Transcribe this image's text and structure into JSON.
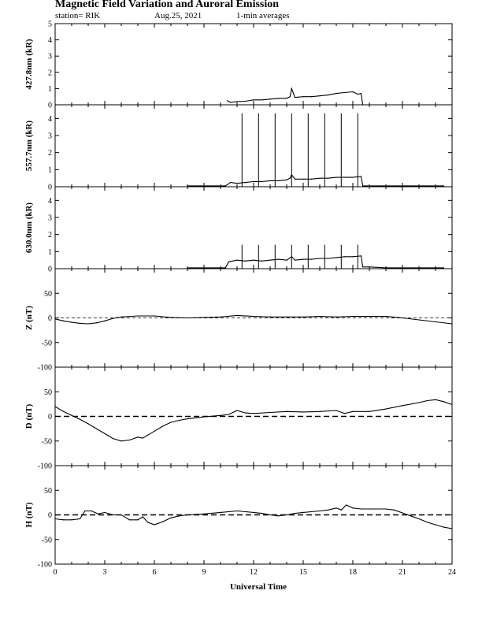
{
  "header": {
    "title": "Magnetic Field Variation and Auroral Emission",
    "station": "station= RIK",
    "date": "Aug.25, 2021",
    "averaging": "1-min averages"
  },
  "chart_data": [
    {
      "type": "line",
      "ylabel": "427.8nm (kR)",
      "xlim": [
        0,
        24
      ],
      "ylim": [
        0,
        5
      ],
      "yticks": [
        0,
        1,
        2,
        3,
        4,
        5
      ],
      "grid": false,
      "series": [
        {
          "x": [
            10.4,
            10.6,
            11.0,
            11.5,
            12.0,
            12.5,
            13.0,
            13.5,
            14.0,
            14.2,
            14.3,
            14.5,
            15.0,
            15.5,
            16.0,
            16.5,
            17.0,
            17.5,
            18.0,
            18.3,
            18.5,
            18.6
          ],
          "y": [
            0.25,
            0.15,
            0.2,
            0.22,
            0.3,
            0.3,
            0.35,
            0.4,
            0.4,
            0.5,
            1.0,
            0.45,
            0.5,
            0.5,
            0.55,
            0.6,
            0.7,
            0.75,
            0.8,
            0.65,
            0.7,
            0.0
          ]
        }
      ]
    },
    {
      "type": "line",
      "ylabel": "557.7nm (kR)",
      "xlim": [
        0,
        24
      ],
      "ylim": [
        0,
        4.8
      ],
      "yticks": [
        0,
        1,
        2,
        3,
        4
      ],
      "grid": false,
      "series": [
        {
          "x": [
            8.0,
            10.3,
            10.6,
            11.0,
            11.5,
            12.0,
            12.5,
            13.0,
            13.5,
            14.0,
            14.2,
            14.3,
            14.5,
            15.0,
            15.5,
            16.0,
            16.5,
            17.0,
            17.5,
            18.0,
            18.5,
            18.6,
            19.0,
            20.0,
            21.0,
            22.0,
            23.0,
            23.5
          ],
          "y": [
            0.05,
            0.05,
            0.25,
            0.2,
            0.25,
            0.3,
            0.3,
            0.35,
            0.35,
            0.4,
            0.5,
            0.7,
            0.45,
            0.45,
            0.45,
            0.5,
            0.5,
            0.55,
            0.55,
            0.55,
            0.6,
            0.05,
            0.05,
            0.05,
            0.05,
            0.05,
            0.05,
            0.05
          ]
        }
      ],
      "spikes": {
        "x": [
          11.3,
          12.3,
          13.3,
          14.3,
          15.3,
          16.3,
          17.3,
          18.3
        ],
        "y": 4.3
      }
    },
    {
      "type": "line",
      "ylabel": "630.0nm (kR)",
      "xlim": [
        0,
        24
      ],
      "ylim": [
        0,
        4.8
      ],
      "yticks": [
        0,
        1,
        2,
        3,
        4
      ],
      "grid": false,
      "series": [
        {
          "x": [
            8.0,
            10.3,
            10.5,
            11.0,
            11.5,
            12.0,
            12.5,
            13.0,
            13.5,
            14.0,
            14.3,
            14.5,
            15.0,
            15.5,
            16.0,
            16.5,
            17.0,
            17.5,
            18.0,
            18.5,
            18.6,
            19.0,
            20.0,
            21.0,
            22.0,
            23.0,
            23.5
          ],
          "y": [
            0.05,
            0.05,
            0.4,
            0.5,
            0.45,
            0.5,
            0.45,
            0.5,
            0.55,
            0.5,
            0.7,
            0.5,
            0.55,
            0.55,
            0.6,
            0.6,
            0.65,
            0.7,
            0.7,
            0.75,
            0.1,
            0.1,
            0.05,
            0.05,
            0.05,
            0.05,
            0.05
          ]
        }
      ],
      "spikes": {
        "x": [
          11.3,
          12.3,
          13.3,
          14.3,
          15.3,
          16.3,
          17.3,
          18.3
        ],
        "y": 1.4
      }
    },
    {
      "type": "line",
      "ylabel": "Z (nT)",
      "xlim": [
        0,
        24
      ],
      "ylim": [
        -100,
        100
      ],
      "yticks": [
        -100,
        -50,
        0,
        50
      ],
      "zero_line": "dashed-thin",
      "grid": false,
      "series": [
        {
          "x": [
            0,
            0.5,
            1,
            1.5,
            2,
            2.5,
            3,
            3.5,
            4,
            5,
            6,
            7,
            8,
            9,
            10,
            11,
            12,
            13,
            14,
            15,
            16,
            17,
            18,
            19,
            20,
            21,
            22,
            23,
            24
          ],
          "y": [
            -2,
            -6,
            -9,
            -11,
            -12,
            -10,
            -6,
            -1,
            2,
            4,
            4,
            1,
            0,
            1,
            2,
            5,
            3,
            2,
            2,
            2,
            3,
            2,
            3,
            3,
            3,
            0,
            -4,
            -8,
            -12
          ]
        }
      ]
    },
    {
      "type": "line",
      "ylabel": "D (nT)",
      "xlim": [
        0,
        24
      ],
      "ylim": [
        -100,
        100
      ],
      "yticks": [
        -100,
        -50,
        0,
        50
      ],
      "zero_line": "dashed-thick",
      "grid": false,
      "series": [
        {
          "x": [
            0,
            0.5,
            1,
            1.5,
            2,
            2.5,
            3,
            3.5,
            4,
            4.5,
            5,
            5.3,
            5.6,
            6,
            6.5,
            7,
            7.5,
            8,
            9,
            10,
            10.5,
            11,
            11.5,
            12,
            13,
            14,
            15,
            16,
            17,
            17.5,
            18,
            19,
            20,
            21,
            22,
            22.5,
            23,
            23.5,
            24
          ],
          "y": [
            20,
            10,
            2,
            -6,
            -15,
            -25,
            -35,
            -45,
            -50,
            -48,
            -42,
            -44,
            -38,
            -30,
            -20,
            -12,
            -8,
            -5,
            -1,
            2,
            4,
            12,
            7,
            6,
            8,
            10,
            9,
            10,
            12,
            6,
            10,
            10,
            15,
            22,
            28,
            32,
            34,
            30,
            24
          ]
        }
      ]
    },
    {
      "type": "line",
      "ylabel": "H (nT)",
      "xlim": [
        0,
        24
      ],
      "ylim": [
        -100,
        100
      ],
      "yticks": [
        -100,
        -50,
        0,
        50
      ],
      "zero_line": "dashed-thick",
      "grid": false,
      "series": [
        {
          "x": [
            0,
            0.5,
            1,
            1.5,
            1.8,
            2.2,
            2.6,
            3,
            3.5,
            4,
            4.5,
            5,
            5.3,
            5.6,
            6,
            6.5,
            7,
            7.5,
            8,
            9,
            10,
            11,
            12,
            12.5,
            13,
            13.5,
            14,
            14.5,
            15,
            16,
            16.5,
            17,
            17.3,
            17.6,
            18,
            18.5,
            19,
            20,
            20.5,
            21,
            21.5,
            22,
            22.5,
            23,
            23.5,
            24
          ],
          "y": [
            -8,
            -10,
            -10,
            -8,
            8,
            8,
            2,
            5,
            0,
            0,
            -10,
            -10,
            -4,
            -15,
            -20,
            -14,
            -6,
            -2,
            0,
            2,
            5,
            8,
            5,
            3,
            0,
            -2,
            0,
            3,
            5,
            8,
            10,
            14,
            10,
            20,
            14,
            12,
            12,
            12,
            10,
            4,
            -2,
            -8,
            -15,
            -20,
            -25,
            -28
          ]
        }
      ]
    }
  ],
  "x_axis": {
    "label": "Universal Time",
    "ticks": [
      0,
      3,
      6,
      9,
      12,
      15,
      18,
      21,
      24
    ]
  }
}
